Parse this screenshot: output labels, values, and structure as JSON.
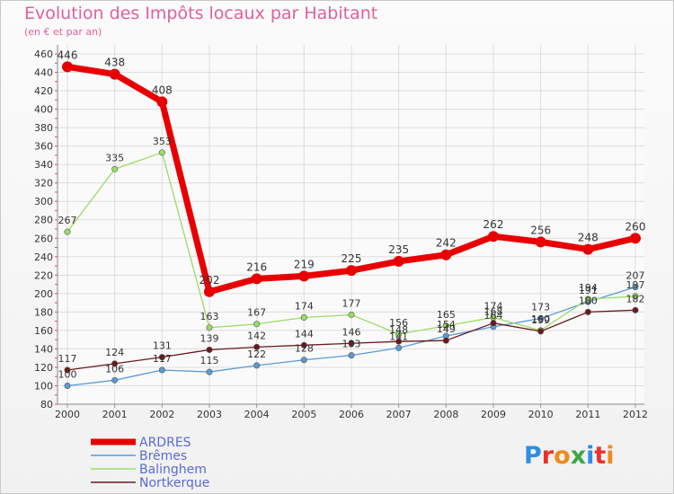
{
  "chart_data": {
    "type": "line",
    "title": "Evolution des Impôts locaux par Habitant",
    "subtitle": "(en € et par an)",
    "xlabel": "",
    "ylabel": "",
    "x": [
      "2000",
      "2001",
      "2002",
      "2003",
      "2004",
      "2005",
      "2006",
      "2007",
      "2008",
      "2009",
      "2010",
      "2011",
      "2012"
    ],
    "ylim": [
      80,
      460
    ],
    "yticks": [
      "80",
      "100",
      "120",
      "140",
      "160",
      "180",
      "200",
      "220",
      "240",
      "260",
      "280",
      "300",
      "320",
      "340",
      "360",
      "380",
      "400",
      "420",
      "440",
      "460"
    ],
    "legend_position": "bottom-left",
    "series": [
      {
        "name": "ARDRES",
        "color": "#e80000",
        "values": [
          446,
          438,
          408,
          202,
          216,
          219,
          225,
          235,
          242,
          262,
          256,
          248,
          260
        ],
        "labels": [
          "446",
          "438",
          "408",
          "202",
          "216",
          "219",
          "225",
          "235",
          "242",
          "262",
          "256",
          "248",
          "260"
        ]
      },
      {
        "name": "Brêmes",
        "color": "#5b9bd5",
        "values": [
          100,
          106,
          117,
          115,
          122,
          128,
          133,
          141,
          154,
          164,
          173,
          191,
          207
        ],
        "labels": [
          "100",
          "106",
          "117",
          "115",
          "122",
          "128",
          "133",
          "141",
          "154",
          "164",
          "173",
          "191",
          "207"
        ]
      },
      {
        "name": "Balinghem",
        "color": "#99dd66",
        "values": [
          267,
          335,
          353,
          163,
          167,
          174,
          177,
          156,
          165,
          174,
          160,
          194,
          197
        ],
        "labels": [
          "267",
          "335",
          "353",
          "163",
          "167",
          "174",
          "177",
          "156",
          "165",
          "174",
          "160",
          "194",
          "197"
        ]
      },
      {
        "name": "Nortkerque",
        "color": "#6b1a1a",
        "values": [
          117,
          124,
          131,
          139,
          142,
          144,
          146,
          148,
          149,
          168,
          159,
          180,
          182
        ],
        "labels": [
          "117",
          "124",
          "131",
          "139",
          "142",
          "144",
          "146",
          "148",
          "149",
          "168",
          "159",
          "180",
          "182"
        ]
      }
    ]
  },
  "brand": {
    "text": "Proxiti",
    "letter_colors": [
      "#2f8de4",
      "#e8322e",
      "#f08a1c",
      "#3aa845",
      "#2f8de4",
      "#e8322e",
      "#f08a1c"
    ]
  }
}
